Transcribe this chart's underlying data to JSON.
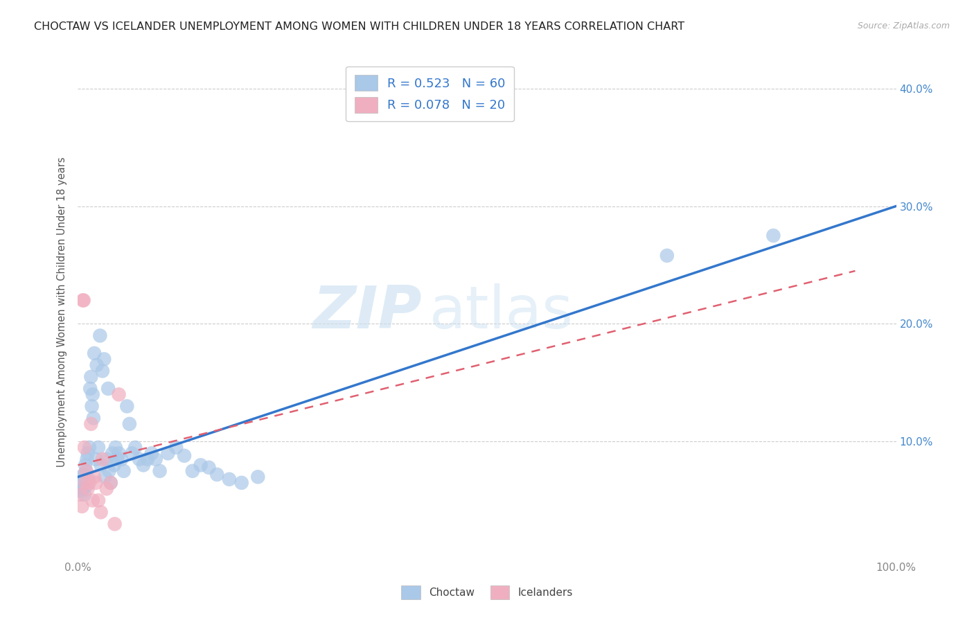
{
  "title": "CHOCTAW VS ICELANDER UNEMPLOYMENT AMONG WOMEN WITH CHILDREN UNDER 18 YEARS CORRELATION CHART",
  "source": "Source: ZipAtlas.com",
  "ylabel": "Unemployment Among Women with Children Under 18 years",
  "watermark_part1": "ZIP",
  "watermark_part2": "atlas",
  "xlim": [
    0,
    1.0
  ],
  "ylim": [
    0,
    0.42
  ],
  "xtick_labels": [
    "0.0%",
    "",
    "",
    "",
    "",
    "",
    "",
    "",
    "",
    "",
    "100.0%"
  ],
  "xtick_vals": [
    0,
    0.1,
    0.2,
    0.3,
    0.4,
    0.5,
    0.6,
    0.7,
    0.8,
    0.9,
    1.0
  ],
  "ytick_right_labels": [
    "10.0%",
    "20.0%",
    "30.0%",
    "40.0%"
  ],
  "ytick_vals": [
    0.1,
    0.2,
    0.3,
    0.4
  ],
  "choctaw_color": "#aac8e8",
  "icelander_color": "#f0afc0",
  "choctaw_line_color": "#3377cc",
  "icelander_line_color": "#e06070",
  "legend_text_color": "#3377cc",
  "choctaw_r": "0.523",
  "choctaw_n": "60",
  "icelander_r": "0.078",
  "icelander_n": "20",
  "choctaw_x": [
    0.003,
    0.004,
    0.005,
    0.006,
    0.007,
    0.008,
    0.009,
    0.01,
    0.01,
    0.011,
    0.012,
    0.013,
    0.014,
    0.015,
    0.016,
    0.017,
    0.018,
    0.019,
    0.02,
    0.022,
    0.023,
    0.025,
    0.027,
    0.028,
    0.03,
    0.032,
    0.033,
    0.035,
    0.037,
    0.038,
    0.04,
    0.042,
    0.044,
    0.046,
    0.048,
    0.05,
    0.053,
    0.056,
    0.06,
    0.063,
    0.066,
    0.07,
    0.075,
    0.08,
    0.085,
    0.09,
    0.095,
    0.1,
    0.11,
    0.12,
    0.13,
    0.14,
    0.15,
    0.16,
    0.17,
    0.185,
    0.2,
    0.22,
    0.72,
    0.85
  ],
  "choctaw_y": [
    0.065,
    0.058,
    0.07,
    0.06,
    0.072,
    0.055,
    0.08,
    0.075,
    0.062,
    0.085,
    0.09,
    0.068,
    0.095,
    0.145,
    0.155,
    0.13,
    0.14,
    0.12,
    0.175,
    0.085,
    0.165,
    0.095,
    0.19,
    0.08,
    0.16,
    0.17,
    0.07,
    0.085,
    0.145,
    0.075,
    0.065,
    0.09,
    0.08,
    0.095,
    0.085,
    0.09,
    0.085,
    0.075,
    0.13,
    0.115,
    0.09,
    0.095,
    0.085,
    0.08,
    0.085,
    0.09,
    0.085,
    0.075,
    0.09,
    0.095,
    0.088,
    0.075,
    0.08,
    0.078,
    0.072,
    0.068,
    0.065,
    0.07,
    0.258,
    0.275
  ],
  "icelander_x": [
    0.003,
    0.005,
    0.006,
    0.007,
    0.008,
    0.009,
    0.01,
    0.012,
    0.014,
    0.016,
    0.018,
    0.02,
    0.022,
    0.025,
    0.028,
    0.03,
    0.035,
    0.04,
    0.045,
    0.05
  ],
  "icelander_y": [
    0.055,
    0.045,
    0.22,
    0.22,
    0.095,
    0.065,
    0.075,
    0.06,
    0.065,
    0.115,
    0.05,
    0.07,
    0.065,
    0.05,
    0.04,
    0.085,
    0.06,
    0.065,
    0.03,
    0.14
  ],
  "choctaw_line_x": [
    0.0,
    1.0
  ],
  "choctaw_line_y": [
    0.07,
    0.3
  ],
  "icelander_line_x": [
    0.0,
    0.95
  ],
  "icelander_line_y": [
    0.08,
    0.245
  ]
}
